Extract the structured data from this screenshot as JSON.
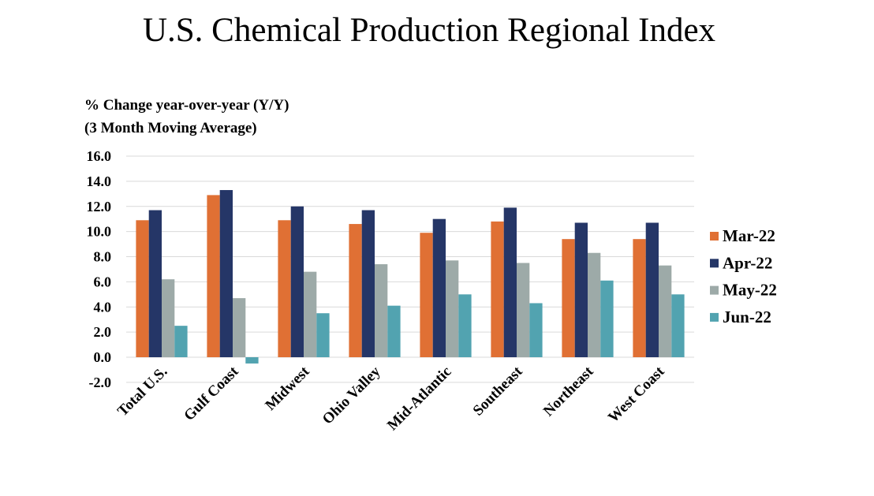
{
  "chart_data": {
    "type": "bar",
    "title": "U.S. Chemical Production Regional Index",
    "ylabel_lines": [
      "% Change year-over-year (Y/Y)",
      "(3 Month Moving Average)"
    ],
    "xlabel": "",
    "categories": [
      "Total U.S.",
      "Gulf Coast",
      "Midwest",
      "Ohio Valley",
      "Mid-Atlantic",
      "Southeast",
      "Northeast",
      "West Coast"
    ],
    "series": [
      {
        "name": "Mar-22",
        "color": "#E07034",
        "values": [
          10.9,
          12.9,
          10.9,
          10.6,
          9.9,
          10.8,
          9.4,
          9.4
        ]
      },
      {
        "name": "Apr-22",
        "color": "#253667",
        "values": [
          11.7,
          13.3,
          12.0,
          11.7,
          11.0,
          11.9,
          10.7,
          10.7
        ]
      },
      {
        "name": "May-22",
        "color": "#9DAAA8",
        "values": [
          6.2,
          4.7,
          6.8,
          7.4,
          7.7,
          7.5,
          8.3,
          7.3
        ]
      },
      {
        "name": "Jun-22",
        "color": "#52A3B0",
        "values": [
          2.5,
          -0.5,
          3.5,
          4.1,
          5.0,
          4.3,
          6.1,
          5.0
        ]
      }
    ],
    "ylim": [
      -2,
      16
    ],
    "yticks": [
      "-2.0",
      "0.0",
      "2.0",
      "4.0",
      "6.0",
      "8.0",
      "10.0",
      "12.0",
      "14.0",
      "16.0"
    ],
    "grid": true,
    "legend": "right"
  }
}
